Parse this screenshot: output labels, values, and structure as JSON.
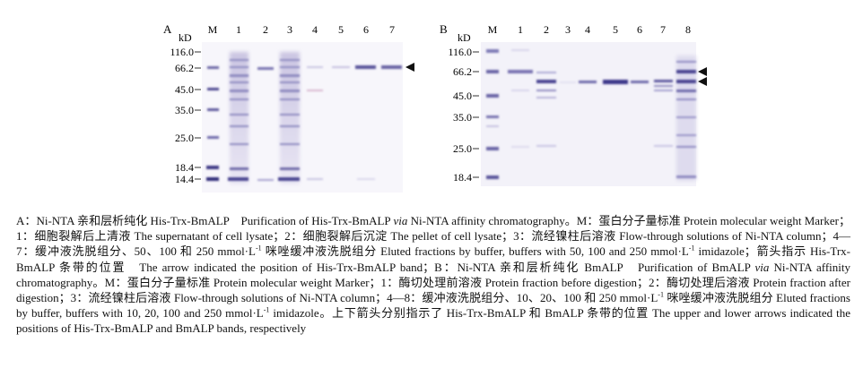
{
  "panels": [
    {
      "letter": "A",
      "unit": "kD",
      "lane_labels": [
        "M",
        "1",
        "2",
        "3",
        "4",
        "5",
        "6",
        "7"
      ],
      "marker_labels": [
        "116.0",
        "66.2",
        "45.0",
        "35.0",
        "25.0",
        "18.4",
        "14.4"
      ],
      "marker_mw": [
        116.0,
        66.2,
        45.0,
        35.0,
        25.0,
        18.4,
        14.4
      ],
      "arrow_count": 1
    },
    {
      "letter": "B",
      "unit": "kD",
      "lane_labels": [
        "M",
        "1",
        "2",
        "3",
        "4",
        "5",
        "6",
        "7",
        "8"
      ],
      "marker_labels": [
        "116.0",
        "66.2",
        "45.0",
        "35.0",
        "25.0",
        "18.4"
      ],
      "marker_mw": [
        116.0,
        66.2,
        45.0,
        35.0,
        25.0,
        18.4
      ],
      "arrow_count": 2
    }
  ],
  "caption": {
    "s1": "A：Ni-NTA 亲和层析纯化 His-Trx-BmALP　Purification of His-Trx-BmALP ",
    "via1": "via",
    "s2": " Ni-NTA affinity chromatography。M：蛋白分子量标准 Protein molecular weight Marker；1：细胞裂解后上清液 The supernatant of cell lysate；2：细胞裂解后沉淀 The pellet of cell lysate；3：流经镍柱后溶液 Flow-through solutions of Ni-NTA column；4—7：缓冲液洗脱组分、50、100 和 250 mmol·L",
    "sup1": "-1",
    "s3": " 咪唑缓冲液洗脱组分 Eluted fractions by buffer, buffers with 50, 100 and 250 mmol·L",
    "sup2": "-1",
    "s4": " imidazole；箭头指示 His-Trx-BmALP 条带的位置　The arrow indicated the position of His-Trx-BmALP band；B：Ni-NTA 亲和层析纯化 BmALP　Purification of BmALP ",
    "via2": "via",
    "s5": " Ni-NTA affinity chromatography。M：蛋白分子量标准 Protein molecular weight Marker；1：酶切处理前溶液 Protein fraction before digestion；2：酶切处理后溶液 Protein fraction after digestion；3：流经镍柱后溶液 Flow-through solutions of Ni-NTA column；4—8：缓冲液洗脱组分、10、20、100 和 250 mmol·L",
    "sup3": "-1",
    "s6": " 咪唑缓冲液洗脱组分 Eluted fractions by buffer, buffers with 10, 20, 100 and 250 mmol·L",
    "sup4": "-1",
    "s7": " imidazole。上下箭头分别指示了 His-Trx-BmALP 和 BmALP 条带的位置 The upper and lower arrows indicated the positions of His-Trx-BmALP and BmALP bands, respectively"
  }
}
